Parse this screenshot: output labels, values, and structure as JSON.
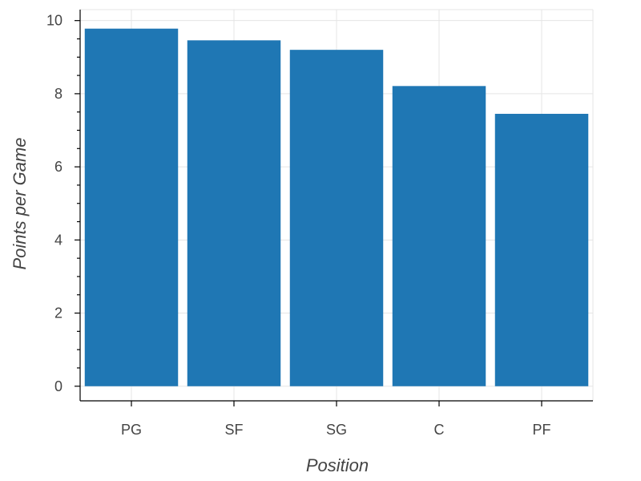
{
  "chart_data": {
    "type": "bar",
    "categories": [
      "PG",
      "SF",
      "SG",
      "C",
      "PF"
    ],
    "values": [
      9.78,
      9.46,
      9.2,
      8.21,
      7.45
    ],
    "xlabel": "Position",
    "ylabel": "Points per Game",
    "ylim": [
      -0.4,
      10.3
    ],
    "yticks": [
      0,
      2,
      4,
      6,
      8,
      10
    ],
    "ytick_labels": [
      "0",
      "2",
      "4",
      "6",
      "8",
      "10"
    ],
    "y_minor_step": 0.5,
    "grid": true,
    "bar_color": "#1f77b4",
    "grid_color": "#e5e5e5"
  }
}
